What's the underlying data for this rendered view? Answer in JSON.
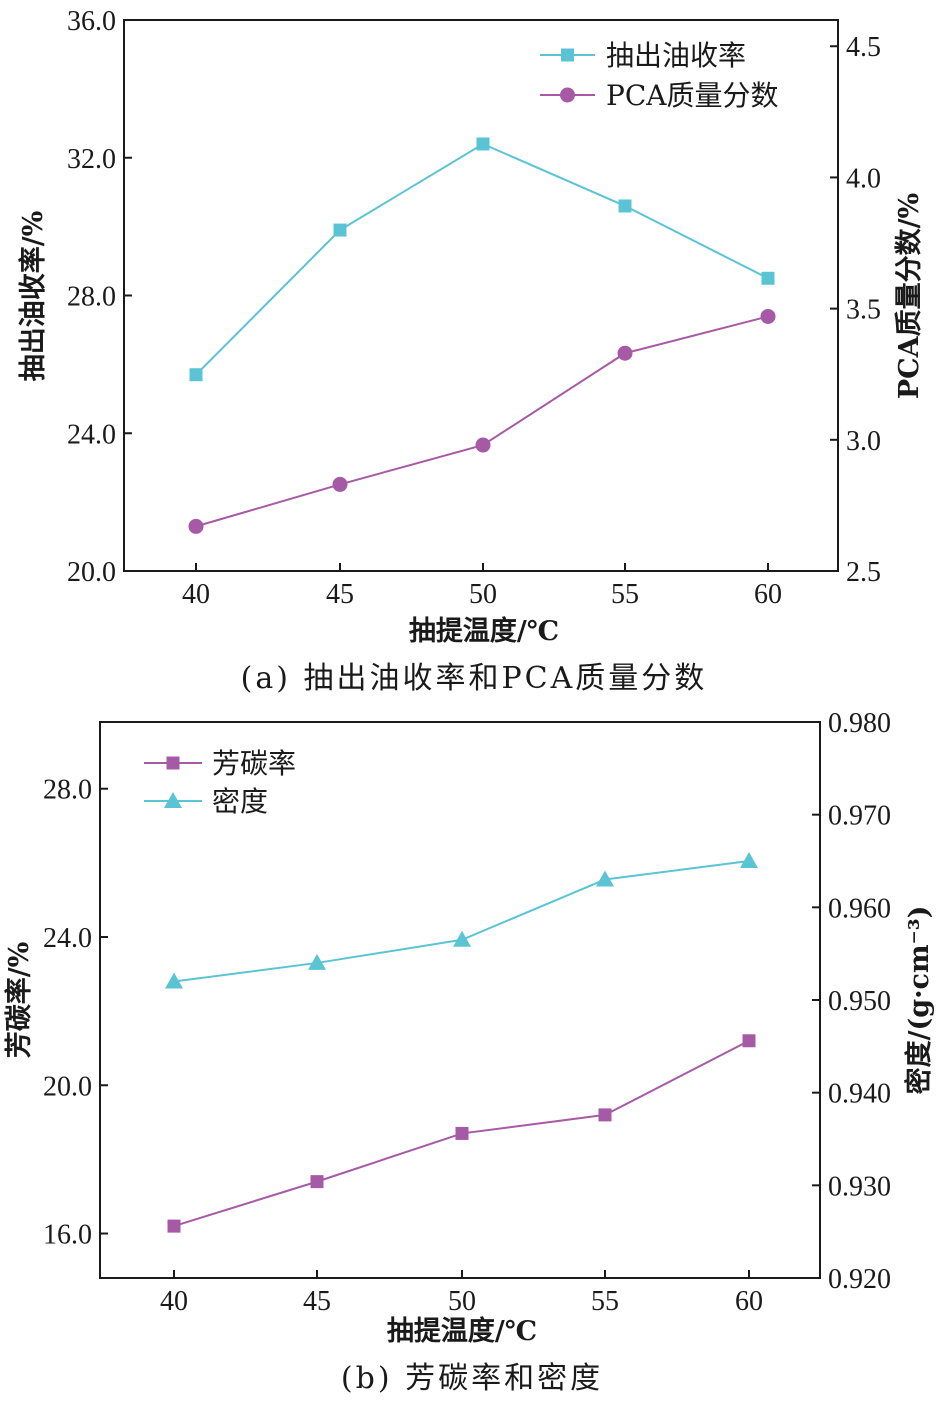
{
  "chart_data": [
    {
      "type": "line",
      "caption": "(a) 抽出油收率和PCA质量分数",
      "xlabel": "抽提温度/℃",
      "ylabel": "抽出油收率/%",
      "y2label": "PCA质量分数/%",
      "categories": [
        40,
        45,
        50,
        55,
        60
      ],
      "x_ticks": [
        "40",
        "45",
        "50",
        "55",
        "60"
      ],
      "ylim": [
        20.0,
        36.0
      ],
      "y_ticks": [
        "20.0",
        "24.0",
        "28.0",
        "32.0",
        "36.0"
      ],
      "y2lim": [
        2.5,
        4.6
      ],
      "y2_ticks": [
        "2.5",
        "3.0",
        "3.5",
        "4.0",
        "4.5"
      ],
      "legend_position": "top-right",
      "series": [
        {
          "name": "抽出油收率",
          "axis": "left",
          "marker": "square",
          "color": "#5bc4d4",
          "values": [
            25.7,
            29.9,
            32.4,
            30.6,
            28.5
          ]
        },
        {
          "name": "PCA质量分数",
          "axis": "right",
          "marker": "circle",
          "color": "#a65aa6",
          "values": [
            2.67,
            2.83,
            2.98,
            3.33,
            3.47
          ]
        }
      ]
    },
    {
      "type": "line",
      "caption": "(b) 芳碳率和密度",
      "xlabel": "抽提温度/℃",
      "ylabel": "芳碳率/%",
      "y2label": "密度/(g·cm⁻³)",
      "categories": [
        40,
        45,
        50,
        55,
        60
      ],
      "x_ticks": [
        "40",
        "45",
        "50",
        "55",
        "60"
      ],
      "ylim": [
        14.8,
        29.8
      ],
      "y_ticks": [
        "16.0",
        "20.0",
        "24.0",
        "28.0"
      ],
      "y2lim": [
        0.92,
        0.98
      ],
      "y2_ticks": [
        "0.920",
        "0.930",
        "0.940",
        "0.950",
        "0.960",
        "0.970",
        "0.980"
      ],
      "legend_position": "top-left",
      "series": [
        {
          "name": "芳碳率",
          "axis": "left",
          "marker": "square",
          "color": "#a65aa6",
          "values": [
            16.2,
            17.4,
            18.7,
            19.2,
            21.2
          ]
        },
        {
          "name": "密度",
          "axis": "right",
          "marker": "triangle",
          "color": "#5bc4d4",
          "values": [
            0.952,
            0.954,
            0.9565,
            0.963,
            0.965
          ]
        }
      ]
    }
  ]
}
